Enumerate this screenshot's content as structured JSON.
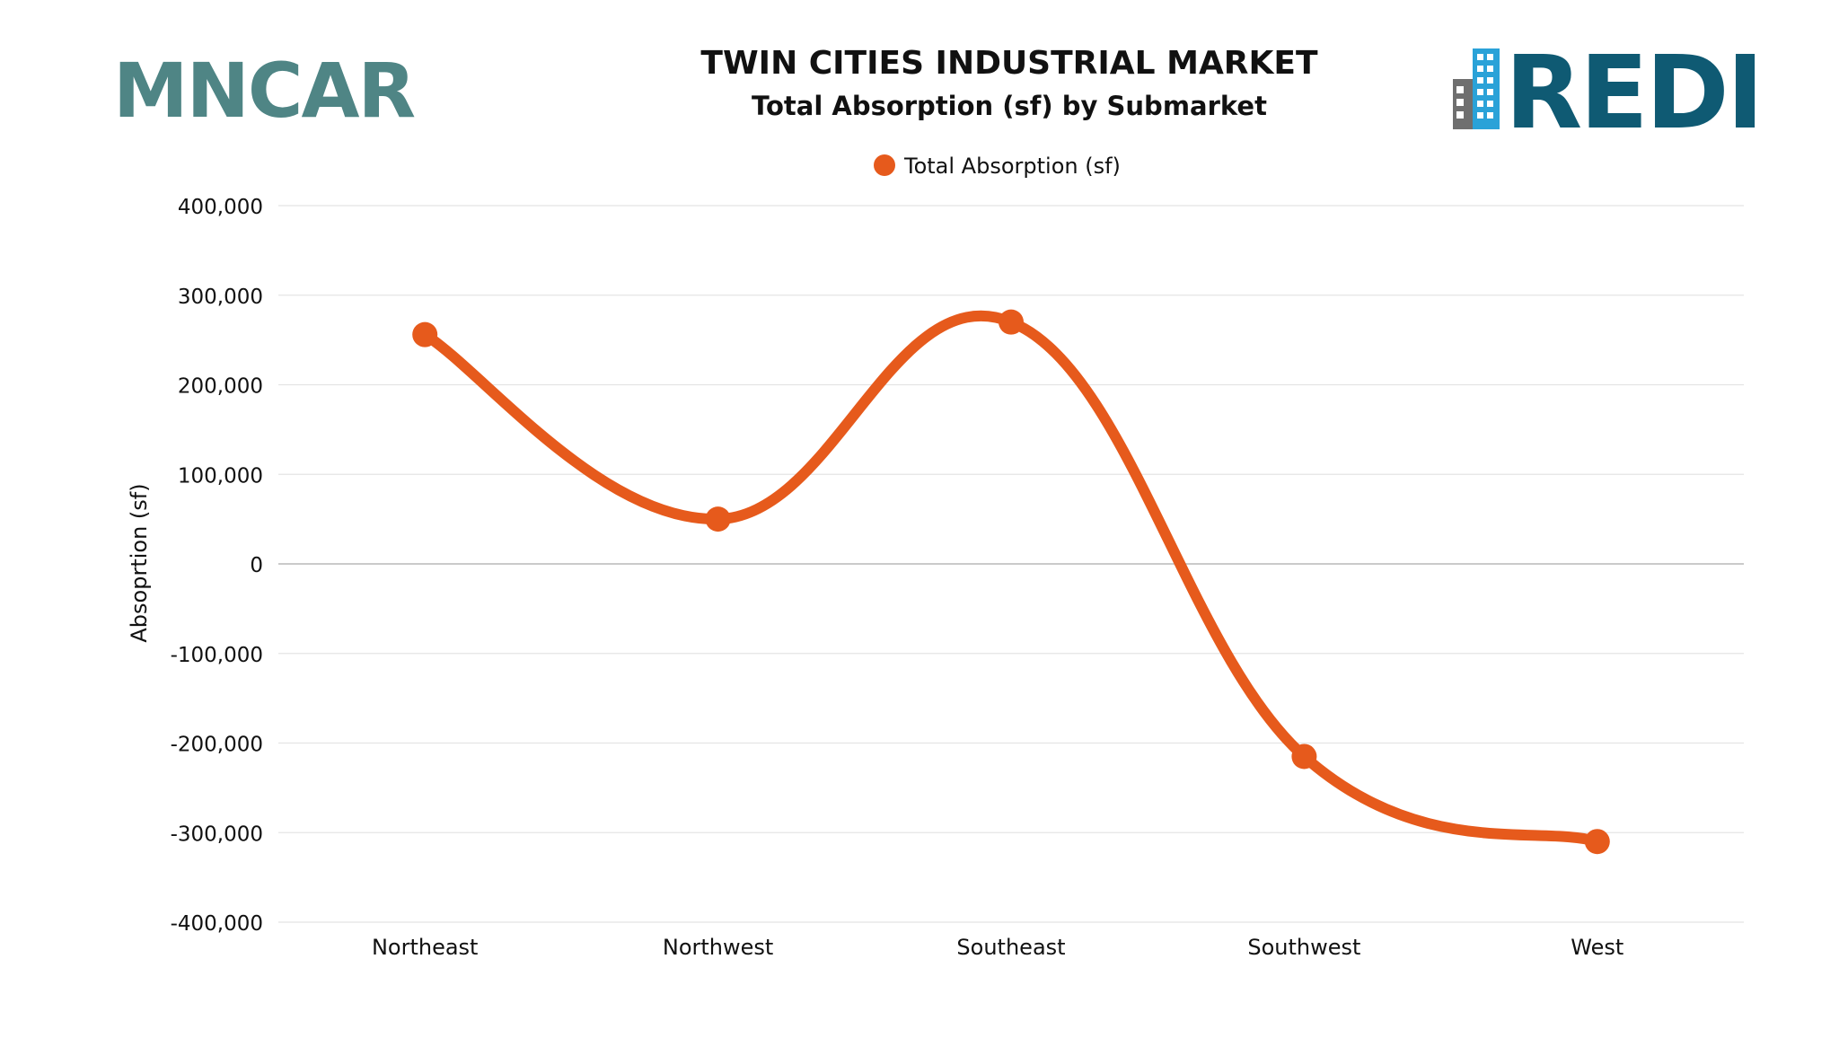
{
  "header": {
    "title": "TWIN CITIES INDUSTRIAL MARKET",
    "subtitle": "Total Absorption (sf) by Submarket"
  },
  "logos": {
    "left": {
      "text": "MNCAR",
      "color": "#4f8585"
    },
    "right": {
      "text": "REDI",
      "color": "#0f5a73",
      "accent": "#2aa2d8",
      "building_gray": "#6f6f6f"
    }
  },
  "colors": {
    "series": "#e65a1c",
    "grid": "#e4e4e4",
    "zero_line": "#b8b8b8",
    "text": "#111111"
  },
  "chart_data": {
    "type": "line",
    "smooth": true,
    "title": "TWIN CITIES INDUSTRIAL MARKET",
    "subtitle": "Total Absorption (sf) by Submarket",
    "xlabel": "",
    "ylabel": "Absoprtion (sf)",
    "categories": [
      "Northeast",
      "Northwest",
      "Southeast",
      "Southwest",
      "West"
    ],
    "series": [
      {
        "name": "Total Absorption (sf)",
        "values": [
          256000,
          50000,
          270000,
          -215000,
          -310000
        ]
      }
    ],
    "ylim": [
      -400000,
      400000
    ],
    "yticks": [
      400000,
      300000,
      200000,
      100000,
      0,
      -100000,
      -200000,
      -300000,
      -400000
    ],
    "ytick_labels": [
      "400,000",
      "300,000",
      "200,000",
      "100,000",
      "0",
      "-100,000",
      "-200,000",
      "-300,000",
      "-400,000"
    ],
    "grid": true,
    "legend": "top-center"
  }
}
